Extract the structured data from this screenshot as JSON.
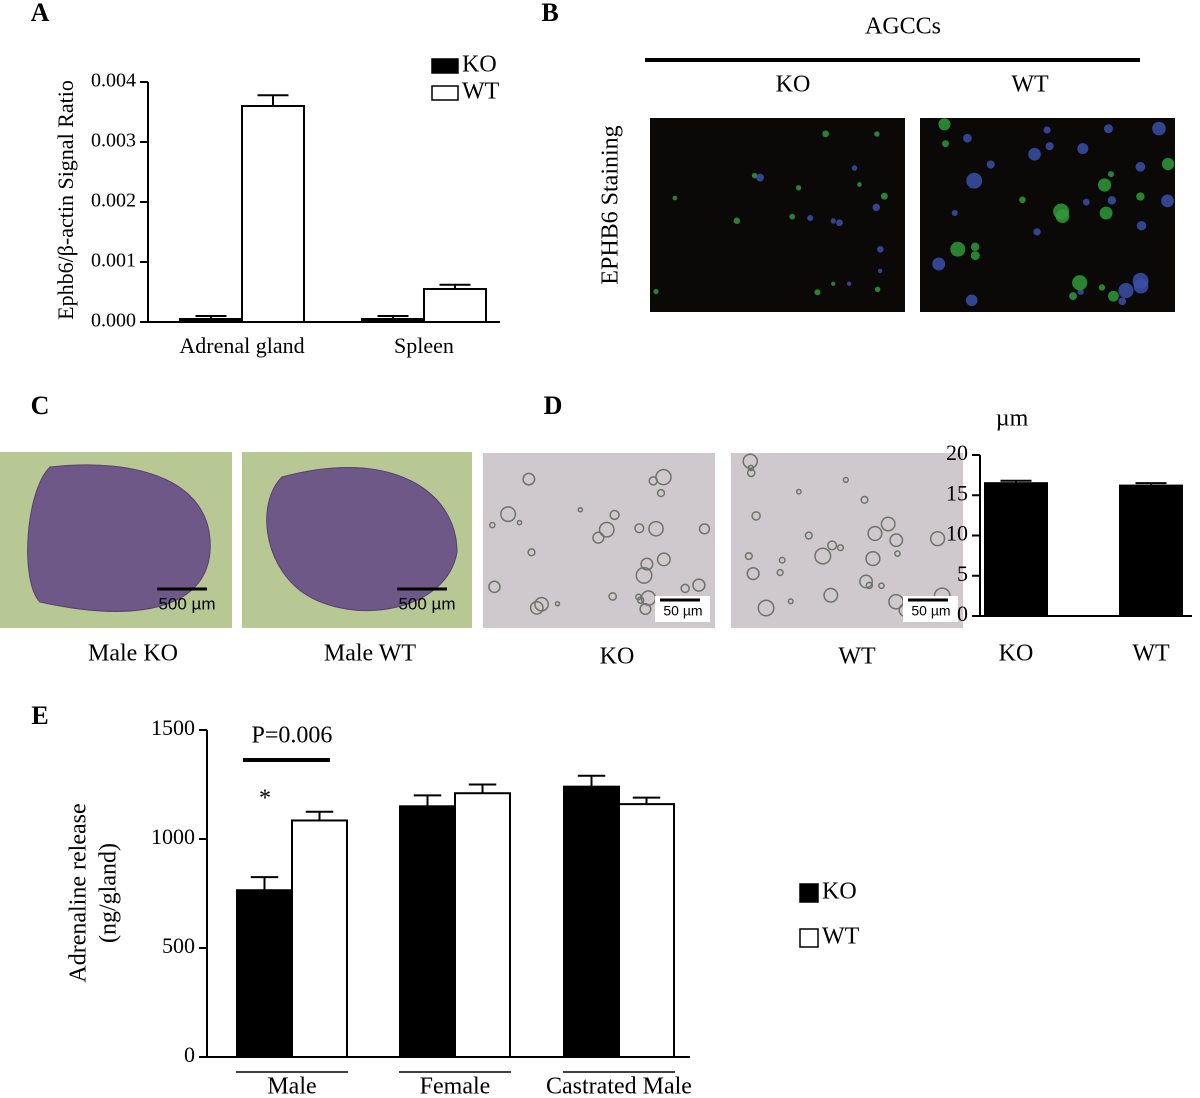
{
  "panel_labels": [
    "A",
    "B",
    "C",
    "D",
    "E"
  ],
  "chart_data": [
    {
      "type": "bar",
      "ylabel": "Ephb6/β-actin Signal Ratio",
      "categories": [
        "Adrenal gland",
        "Spleen"
      ],
      "series": [
        {
          "name": "KO",
          "color": "#000000",
          "values": [
            5e-05,
            5e-05
          ],
          "errors": [
            5e-05,
            5e-05
          ]
        },
        {
          "name": "WT",
          "color": "#ffffff",
          "values": [
            0.0036,
            0.00055
          ],
          "errors": [
            0.00018,
            7e-05
          ]
        }
      ],
      "ylim": [
        0,
        0.004
      ],
      "yticks": [
        {
          "value": 0,
          "label": "0.000"
        },
        0.001,
        0.002,
        0.003,
        0.004
      ],
      "legend": "top-right"
    },
    {
      "type": "bar",
      "ylabel": "µm",
      "categories": [
        "KO",
        "WT"
      ],
      "series": [
        {
          "color": "#000000",
          "values": [
            16.5,
            16.2
          ],
          "errors": [
            0.3,
            0.3
          ]
        }
      ],
      "ylim": [
        0,
        20
      ],
      "yticks": [
        0,
        5,
        10,
        15,
        20
      ]
    },
    {
      "type": "bar",
      "ylabel": [
        "Adrenaline release",
        "(ng/gland)"
      ],
      "categories": [
        "Male",
        "Female",
        "Castrated Male"
      ],
      "series": [
        {
          "name": "KO",
          "color": "#000000",
          "values": [
            765,
            1150,
            1240
          ],
          "errors": [
            60,
            50,
            50
          ]
        },
        {
          "name": "WT",
          "color": "#ffffff",
          "values": [
            1085,
            1210,
            1160
          ],
          "errors": [
            40,
            40,
            30
          ]
        }
      ],
      "ylim": [
        0,
        1500
      ],
      "yticks": [
        0,
        500,
        1000,
        1500
      ],
      "annotations": [
        "P=0.006",
        "*"
      ],
      "legend": "right"
    }
  ],
  "micrographs": {
    "B": {
      "header": "AGCCs",
      "row_label": "EPHB6 Staining",
      "columns": [
        "KO",
        "WT"
      ]
    },
    "C": {
      "scale_bar": "500 µm",
      "captions": [
        "Male KO",
        "Male WT"
      ]
    },
    "D": {
      "scale_bar": "50 µm",
      "captions": [
        "KO",
        "WT"
      ]
    }
  }
}
